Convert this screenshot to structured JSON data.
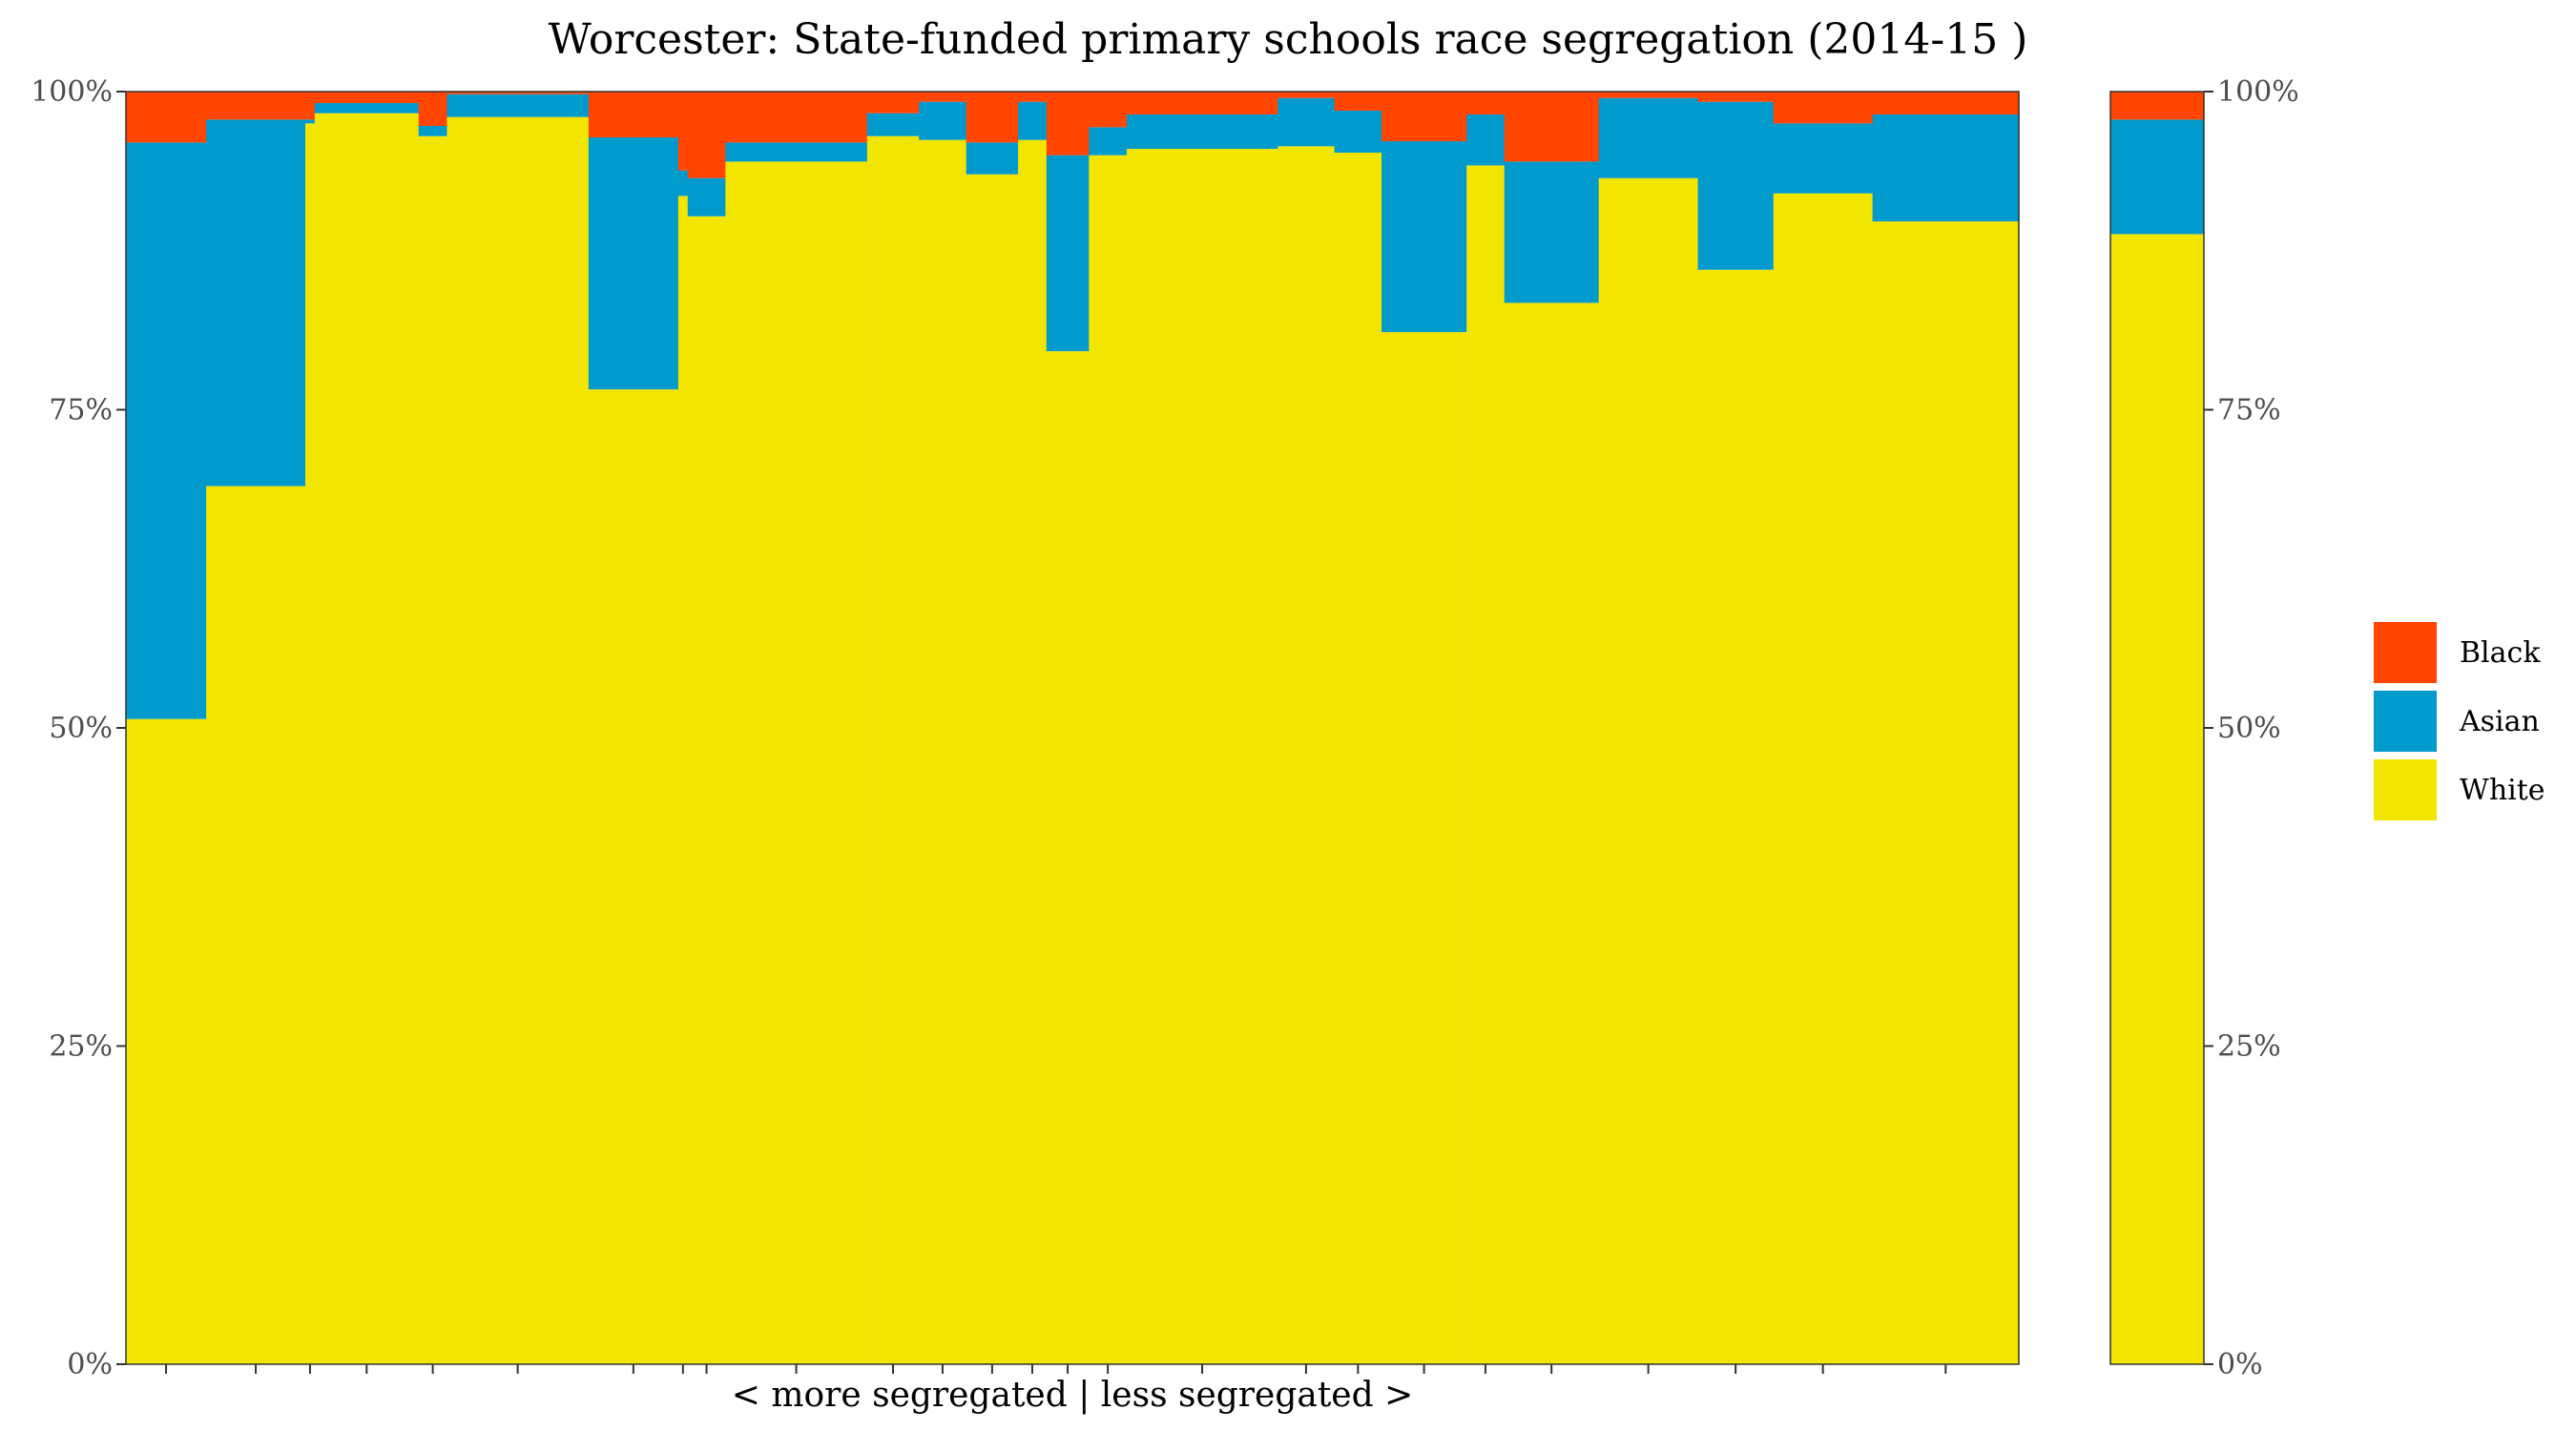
{
  "chart_data": {
    "type": "bar",
    "subtype": "stacked-variable-width (marimekko)",
    "title": "Worcester: State-funded primary schools race segregation (2014-15 )",
    "xlabel": "< more segregated | less segregated >",
    "ylabel": "",
    "ylim": [
      0,
      1
    ],
    "yticks": [
      0,
      0.25,
      0.5,
      0.75,
      1.0
    ],
    "ytick_labels": [
      "0%",
      "25%",
      "50%",
      "75%",
      "100%"
    ],
    "y_axis_sides": [
      "left",
      "right"
    ],
    "grid": false,
    "legend_position": "right",
    "legend": [
      {
        "name": "Black",
        "color": "#FF4500"
      },
      {
        "name": "Asian",
        "color": "#009ACD"
      },
      {
        "name": "White",
        "color": "#F2E500"
      }
    ],
    "series_order_bottom_to_top": [
      "White",
      "Asian",
      "Black"
    ],
    "schools": [
      {
        "width": 8.5,
        "white": 0.507,
        "asian": 0.453,
        "black": 0.04
      },
      {
        "width": 10.5,
        "white": 0.69,
        "asian": 0.288,
        "black": 0.022
      },
      {
        "width": 1,
        "white": 0.975,
        "asian": 0.003,
        "black": 0.022
      },
      {
        "width": 11,
        "white": 0.983,
        "asian": 0.008,
        "black": 0.009
      },
      {
        "width": 3,
        "white": 0.965,
        "asian": 0.008,
        "black": 0.027
      },
      {
        "width": 15,
        "white": 0.98,
        "asian": 0.018,
        "black": 0.002
      },
      {
        "width": 9.5,
        "white": 0.766,
        "asian": 0.198,
        "black": 0.036
      },
      {
        "width": 1,
        "white": 0.918,
        "asian": 0.02,
        "black": 0.062
      },
      {
        "width": 4,
        "white": 0.902,
        "asian": 0.03,
        "black": 0.068
      },
      {
        "width": 15,
        "white": 0.945,
        "asian": 0.015,
        "black": 0.04
      },
      {
        "width": 5.5,
        "white": 0.965,
        "asian": 0.018,
        "black": 0.017
      },
      {
        "width": 5,
        "white": 0.962,
        "asian": 0.03,
        "black": 0.008
      },
      {
        "width": 5.5,
        "white": 0.935,
        "asian": 0.025,
        "black": 0.04
      },
      {
        "width": 3,
        "white": 0.962,
        "asian": 0.03,
        "black": 0.008
      },
      {
        "width": 4.5,
        "white": 0.796,
        "asian": 0.154,
        "black": 0.05
      },
      {
        "width": 4,
        "white": 0.95,
        "asian": 0.022,
        "black": 0.028
      },
      {
        "width": 16,
        "white": 0.955,
        "asian": 0.027,
        "black": 0.018
      },
      {
        "width": 6,
        "white": 0.957,
        "asian": 0.038,
        "black": 0.005
      },
      {
        "width": 5,
        "white": 0.952,
        "asian": 0.033,
        "black": 0.015
      },
      {
        "width": 9,
        "white": 0.811,
        "asian": 0.15,
        "black": 0.039
      },
      {
        "width": 4,
        "white": 0.942,
        "asian": 0.04,
        "black": 0.018
      },
      {
        "width": 10,
        "white": 0.834,
        "asian": 0.111,
        "black": 0.055
      },
      {
        "width": 10.5,
        "white": 0.932,
        "asian": 0.063,
        "black": 0.005
      },
      {
        "width": 8,
        "white": 0.86,
        "asian": 0.132,
        "black": 0.008
      },
      {
        "width": 10.5,
        "white": 0.92,
        "asian": 0.055,
        "black": 0.025
      },
      {
        "width": 15.5,
        "white": 0.898,
        "asian": 0.084,
        "black": 0.018
      }
    ],
    "overall": {
      "white": 0.888,
      "asian": 0.09,
      "black": 0.022
    }
  }
}
